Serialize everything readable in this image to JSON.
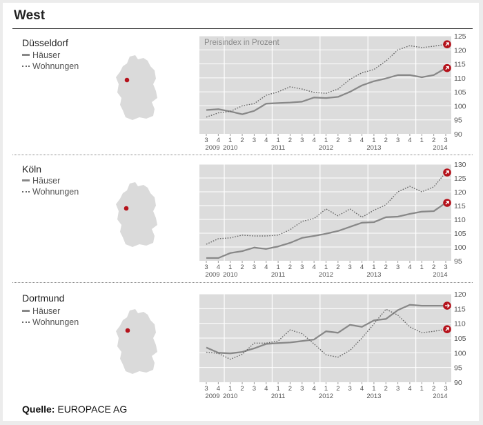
{
  "title": "West",
  "legend": {
    "haeuser": "Häuser",
    "wohnungen": "Wohnungen"
  },
  "source": {
    "label": "Quelle:",
    "text": "EUROPACE AG"
  },
  "colors": {
    "panel_bg": "#dcdcdc",
    "haeuser": "#888888",
    "wohnungen": "#666666",
    "marker": "#b5121b",
    "map": "#dadada"
  },
  "chart_data": [
    {
      "type": "line",
      "city": "Düsseldorf",
      "title": "Preisindex in Prozent",
      "quarters": [
        "3",
        "4",
        "1",
        "2",
        "3",
        "4",
        "1",
        "2",
        "3",
        "4",
        "1",
        "2",
        "3",
        "4",
        "1",
        "2",
        "3",
        "4",
        "1",
        "2",
        "3"
      ],
      "years": [
        "2009",
        "2010",
        "2011",
        "2012",
        "2013",
        "2014"
      ],
      "ylim": [
        90,
        125
      ],
      "yticks": [
        90,
        95,
        100,
        105,
        110,
        115,
        120,
        125
      ],
      "series": [
        {
          "name": "Häuser",
          "values": [
            98.5,
            98.8,
            98.0,
            97.0,
            98.2,
            100.8,
            101.0,
            101.2,
            101.5,
            103.0,
            102.8,
            103.2,
            105.0,
            107.3,
            108.8,
            109.8,
            111.0,
            111.0,
            110.2,
            111.0,
            113.5
          ]
        },
        {
          "name": "Wohnungen",
          "values": [
            96.0,
            97.5,
            98.0,
            100.0,
            100.8,
            103.8,
            105.0,
            106.8,
            106.0,
            104.8,
            104.5,
            106.0,
            109.5,
            111.8,
            113.0,
            116.0,
            120.0,
            121.5,
            120.8,
            121.3,
            122.0
          ]
        }
      ]
    },
    {
      "type": "line",
      "city": "Köln",
      "quarters": [
        "3",
        "4",
        "1",
        "2",
        "3",
        "4",
        "1",
        "2",
        "3",
        "4",
        "1",
        "2",
        "3",
        "4",
        "1",
        "2",
        "3",
        "4",
        "1",
        "2",
        "3"
      ],
      "years": [
        "2009",
        "2010",
        "2011",
        "2012",
        "2013",
        "2014"
      ],
      "ylim": [
        95,
        130
      ],
      "yticks": [
        95,
        100,
        105,
        110,
        115,
        120,
        125,
        130
      ],
      "series": [
        {
          "name": "Häuser",
          "values": [
            96.0,
            96.0,
            97.8,
            98.5,
            99.8,
            99.3,
            100.2,
            101.5,
            103.3,
            104.0,
            104.8,
            105.8,
            107.3,
            108.8,
            109.0,
            110.8,
            111.0,
            112.0,
            112.8,
            113.0,
            116.0
          ]
        },
        {
          "name": "Wohnungen",
          "values": [
            101.0,
            103.0,
            103.3,
            104.3,
            104.0,
            104.0,
            104.3,
            106.3,
            109.3,
            110.3,
            113.8,
            111.3,
            113.8,
            110.8,
            113.3,
            115.3,
            120.0,
            122.0,
            120.0,
            121.8,
            127.0
          ]
        }
      ]
    },
    {
      "type": "line",
      "city": "Dortmund",
      "quarters": [
        "3",
        "4",
        "1",
        "2",
        "3",
        "4",
        "1",
        "2",
        "3",
        "4",
        "1",
        "2",
        "3",
        "4",
        "1",
        "2",
        "3",
        "4",
        "1",
        "2",
        "3"
      ],
      "years": [
        "2009",
        "2010",
        "2011",
        "2012",
        "2013",
        "2014"
      ],
      "ylim": [
        90,
        120
      ],
      "yticks": [
        90,
        95,
        100,
        105,
        110,
        115,
        120
      ],
      "series": [
        {
          "name": "Häuser",
          "values": [
            101.8,
            100.0,
            99.8,
            100.3,
            101.5,
            103.0,
            103.3,
            103.5,
            104.0,
            104.5,
            107.3,
            106.8,
            109.5,
            108.8,
            111.0,
            111.5,
            114.5,
            116.3,
            116.0,
            116.0,
            116.0
          ]
        },
        {
          "name": "Wohnungen",
          "values": [
            100.2,
            99.8,
            97.8,
            99.5,
            103.3,
            103.3,
            104.0,
            107.8,
            106.5,
            103.0,
            99.3,
            98.5,
            100.8,
            105.0,
            109.8,
            114.8,
            112.8,
            108.8,
            106.8,
            107.3,
            108.0
          ]
        }
      ]
    }
  ]
}
